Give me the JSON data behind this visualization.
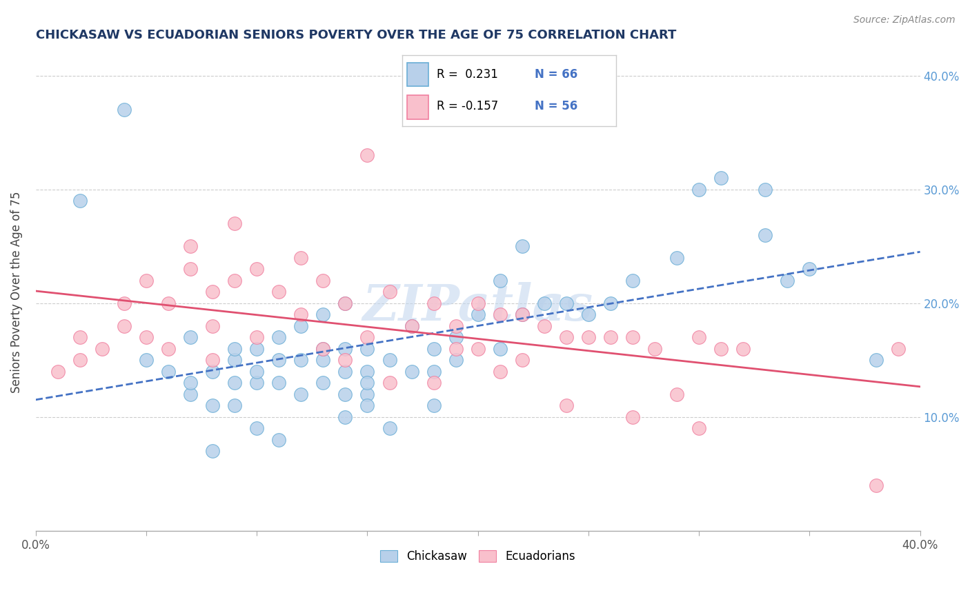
{
  "title": "CHICKASAW VS ECUADORIAN SENIORS POVERTY OVER THE AGE OF 75 CORRELATION CHART",
  "source": "Source: ZipAtlas.com",
  "ylabel": "Seniors Poverty Over the Age of 75",
  "xlim": [
    0.0,
    0.4
  ],
  "ylim": [
    0.0,
    0.42
  ],
  "xtick_positions": [
    0.0,
    0.05,
    0.1,
    0.15,
    0.2,
    0.25,
    0.3,
    0.35,
    0.4
  ],
  "xticklabels": [
    "0.0%",
    "",
    "",
    "",
    "",
    "",
    "",
    "",
    "40.0%"
  ],
  "ytick_positions": [
    0.1,
    0.2,
    0.3,
    0.4
  ],
  "ytick_labels": [
    "10.0%",
    "20.0%",
    "30.0%",
    "40.0%"
  ],
  "legend_r_blue": "0.231",
  "legend_n_blue": "66",
  "legend_r_pink": "-0.157",
  "legend_n_pink": "56",
  "blue_fill_color": "#b8d0ea",
  "blue_edge_color": "#6aaed6",
  "pink_fill_color": "#f9c0cc",
  "pink_edge_color": "#f080a0",
  "blue_line_color": "#4472c4",
  "pink_line_color": "#e05070",
  "title_color": "#1f3864",
  "watermark": "ZIPatlas",
  "blue_scatter_x": [
    0.02,
    0.05,
    0.06,
    0.07,
    0.07,
    0.07,
    0.08,
    0.08,
    0.08,
    0.09,
    0.09,
    0.09,
    0.09,
    0.1,
    0.1,
    0.1,
    0.1,
    0.11,
    0.11,
    0.11,
    0.11,
    0.12,
    0.12,
    0.12,
    0.13,
    0.13,
    0.13,
    0.13,
    0.14,
    0.14,
    0.14,
    0.14,
    0.14,
    0.15,
    0.15,
    0.15,
    0.15,
    0.15,
    0.16,
    0.16,
    0.17,
    0.17,
    0.18,
    0.18,
    0.18,
    0.19,
    0.19,
    0.2,
    0.21,
    0.21,
    0.22,
    0.23,
    0.24,
    0.25,
    0.26,
    0.27,
    0.29,
    0.3,
    0.31,
    0.33,
    0.33,
    0.34,
    0.35,
    0.38,
    0.04,
    0.22
  ],
  "blue_scatter_y": [
    0.29,
    0.15,
    0.14,
    0.12,
    0.17,
    0.13,
    0.07,
    0.11,
    0.14,
    0.15,
    0.13,
    0.16,
    0.11,
    0.09,
    0.13,
    0.14,
    0.16,
    0.08,
    0.13,
    0.17,
    0.15,
    0.12,
    0.15,
    0.18,
    0.13,
    0.15,
    0.19,
    0.16,
    0.1,
    0.14,
    0.16,
    0.12,
    0.2,
    0.12,
    0.14,
    0.16,
    0.13,
    0.11,
    0.15,
    0.09,
    0.14,
    0.18,
    0.14,
    0.16,
    0.11,
    0.15,
    0.17,
    0.19,
    0.16,
    0.22,
    0.19,
    0.2,
    0.2,
    0.19,
    0.2,
    0.22,
    0.24,
    0.3,
    0.31,
    0.3,
    0.26,
    0.22,
    0.23,
    0.15,
    0.37,
    0.25
  ],
  "pink_scatter_x": [
    0.01,
    0.02,
    0.02,
    0.03,
    0.04,
    0.04,
    0.05,
    0.05,
    0.06,
    0.06,
    0.07,
    0.07,
    0.08,
    0.08,
    0.08,
    0.09,
    0.09,
    0.1,
    0.1,
    0.11,
    0.12,
    0.12,
    0.13,
    0.13,
    0.14,
    0.14,
    0.15,
    0.15,
    0.16,
    0.16,
    0.17,
    0.18,
    0.18,
    0.19,
    0.19,
    0.2,
    0.2,
    0.21,
    0.21,
    0.22,
    0.22,
    0.23,
    0.24,
    0.24,
    0.25,
    0.26,
    0.27,
    0.27,
    0.28,
    0.29,
    0.3,
    0.3,
    0.31,
    0.32,
    0.38,
    0.39
  ],
  "pink_scatter_y": [
    0.14,
    0.15,
    0.17,
    0.16,
    0.18,
    0.2,
    0.17,
    0.22,
    0.16,
    0.2,
    0.23,
    0.25,
    0.18,
    0.21,
    0.15,
    0.22,
    0.27,
    0.17,
    0.23,
    0.21,
    0.19,
    0.24,
    0.22,
    0.16,
    0.2,
    0.15,
    0.33,
    0.17,
    0.21,
    0.13,
    0.18,
    0.2,
    0.13,
    0.18,
    0.16,
    0.2,
    0.16,
    0.19,
    0.14,
    0.19,
    0.15,
    0.18,
    0.17,
    0.11,
    0.17,
    0.17,
    0.17,
    0.1,
    0.16,
    0.12,
    0.17,
    0.09,
    0.16,
    0.16,
    0.04,
    0.16
  ]
}
